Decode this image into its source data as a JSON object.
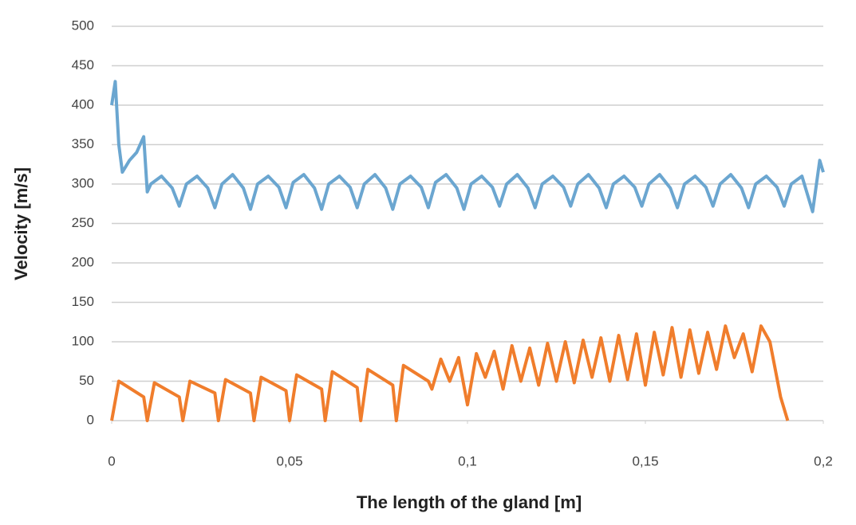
{
  "chart_data": {
    "type": "line",
    "xlabel": "The length of the gland [m]",
    "ylabel": "Velocity [m/s]",
    "xlim": [
      0,
      0.2
    ],
    "xticks": [
      0,
      {
        "value": 0.05,
        "label": "0,05"
      },
      {
        "value": 0.1,
        "label": "0,1"
      },
      {
        "value": 0.15,
        "label": "0,15"
      },
      {
        "value": 0.2,
        "label": "0,2"
      }
    ],
    "ylim": [
      0,
      500
    ],
    "yticks": [
      0,
      50,
      100,
      150,
      200,
      250,
      300,
      350,
      400,
      450,
      500
    ],
    "grid": true,
    "series": [
      {
        "color": "#6ba6d0",
        "x": [
          0,
          0.001,
          0.002,
          0.003,
          0.005,
          0.007,
          0.009,
          0.01,
          0.011,
          0.014,
          0.017,
          0.019,
          0.021,
          0.024,
          0.027,
          0.029,
          0.031,
          0.034,
          0.037,
          0.039,
          0.041,
          0.044,
          0.047,
          0.049,
          0.051,
          0.054,
          0.057,
          0.059,
          0.061,
          0.064,
          0.067,
          0.069,
          0.071,
          0.074,
          0.077,
          0.079,
          0.081,
          0.084,
          0.087,
          0.089,
          0.091,
          0.094,
          0.097,
          0.099,
          0.101,
          0.104,
          0.107,
          0.109,
          0.111,
          0.114,
          0.117,
          0.119,
          0.121,
          0.124,
          0.127,
          0.129,
          0.131,
          0.134,
          0.137,
          0.139,
          0.141,
          0.144,
          0.147,
          0.149,
          0.151,
          0.154,
          0.157,
          0.159,
          0.161,
          0.164,
          0.167,
          0.169,
          0.171,
          0.174,
          0.177,
          0.179,
          0.181,
          0.184,
          0.187,
          0.189,
          0.191,
          0.194,
          0.197,
          0.199,
          0.2
        ],
        "values": [
          400,
          430,
          350,
          315,
          330,
          340,
          360,
          290,
          300,
          310,
          295,
          272,
          300,
          310,
          295,
          270,
          300,
          312,
          295,
          268,
          300,
          310,
          296,
          270,
          302,
          312,
          295,
          268,
          300,
          310,
          296,
          270,
          300,
          312,
          295,
          268,
          300,
          310,
          296,
          270,
          302,
          312,
          295,
          268,
          300,
          310,
          296,
          272,
          300,
          312,
          295,
          270,
          300,
          310,
          296,
          272,
          300,
          312,
          295,
          270,
          300,
          310,
          296,
          272,
          300,
          312,
          295,
          270,
          300,
          310,
          296,
          272,
          300,
          312,
          295,
          270,
          300,
          310,
          296,
          272,
          300,
          310,
          265,
          330,
          315
        ]
      },
      {
        "color": "#f07d2c",
        "x": [
          0,
          0.002,
          0.009,
          0.01,
          0.012,
          0.019,
          0.02,
          0.022,
          0.029,
          0.03,
          0.032,
          0.039,
          0.04,
          0.042,
          0.049,
          0.05,
          0.052,
          0.059,
          0.06,
          0.062,
          0.069,
          0.07,
          0.072,
          0.079,
          0.08,
          0.082,
          0.089,
          0.09,
          0.0925,
          0.095,
          0.0975,
          0.1,
          0.1025,
          0.105,
          0.1075,
          0.11,
          0.1125,
          0.115,
          0.1175,
          0.12,
          0.1225,
          0.125,
          0.1275,
          0.13,
          0.1325,
          0.135,
          0.1375,
          0.14,
          0.1425,
          0.145,
          0.1475,
          0.15,
          0.1525,
          0.155,
          0.1575,
          0.16,
          0.1625,
          0.165,
          0.1675,
          0.17,
          0.1725,
          0.175,
          0.1775,
          0.18,
          0.1825,
          0.185,
          0.188,
          0.19
        ],
        "values": [
          0,
          50,
          30,
          0,
          48,
          30,
          0,
          50,
          35,
          0,
          52,
          35,
          0,
          55,
          38,
          0,
          58,
          40,
          0,
          62,
          42,
          0,
          65,
          45,
          0,
          70,
          50,
          40,
          78,
          50,
          80,
          20,
          85,
          55,
          88,
          40,
          95,
          50,
          92,
          45,
          98,
          50,
          100,
          48,
          102,
          55,
          105,
          50,
          108,
          52,
          110,
          45,
          112,
          58,
          118,
          55,
          115,
          60,
          112,
          65,
          120,
          80,
          110,
          62,
          120,
          100,
          30,
          0
        ]
      }
    ]
  }
}
